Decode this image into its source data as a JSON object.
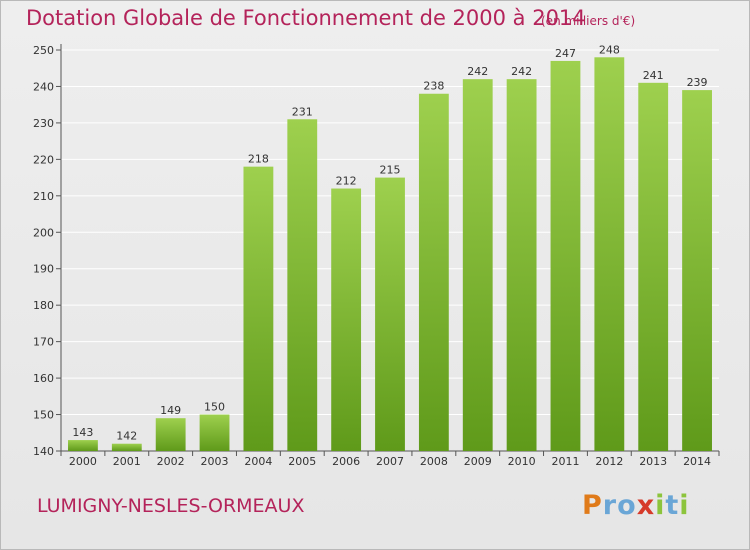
{
  "title": "Dotation Globale de Fonctionnement de 2000 à 2014",
  "unit_note": "(en milliers d'€)",
  "commune": "LUMIGNY-NESLES-ORMEAUX",
  "logo": {
    "letters": [
      "P",
      "r",
      "o",
      "x",
      "i",
      "t",
      "i"
    ],
    "colors": [
      "#e07b1a",
      "#6aa6d6",
      "#6aa6d6",
      "#d63a2a",
      "#8cc43c",
      "#6aa6d6",
      "#8cc43c"
    ]
  },
  "colors": {
    "title": "#b4235a",
    "bar_top": "#9ed04e",
    "bar_bottom": "#5f9a1a",
    "grid": "#ffffff",
    "axis": "#555555"
  },
  "chart_data": {
    "type": "bar",
    "title": "Dotation Globale de Fonctionnement de 2000 à 2014",
    "categories": [
      "2000",
      "2001",
      "2002",
      "2003",
      "2004",
      "2005",
      "2006",
      "2007",
      "2008",
      "2009",
      "2010",
      "2011",
      "2012",
      "2013",
      "2014"
    ],
    "values": [
      143,
      142,
      149,
      150,
      218,
      231,
      212,
      215,
      238,
      242,
      242,
      247,
      248,
      241,
      239
    ],
    "ylim": [
      140,
      250
    ],
    "yticks": [
      140,
      150,
      160,
      170,
      180,
      190,
      200,
      210,
      220,
      230,
      240,
      250
    ],
    "grid": true,
    "xlabel": "",
    "ylabel": ""
  }
}
